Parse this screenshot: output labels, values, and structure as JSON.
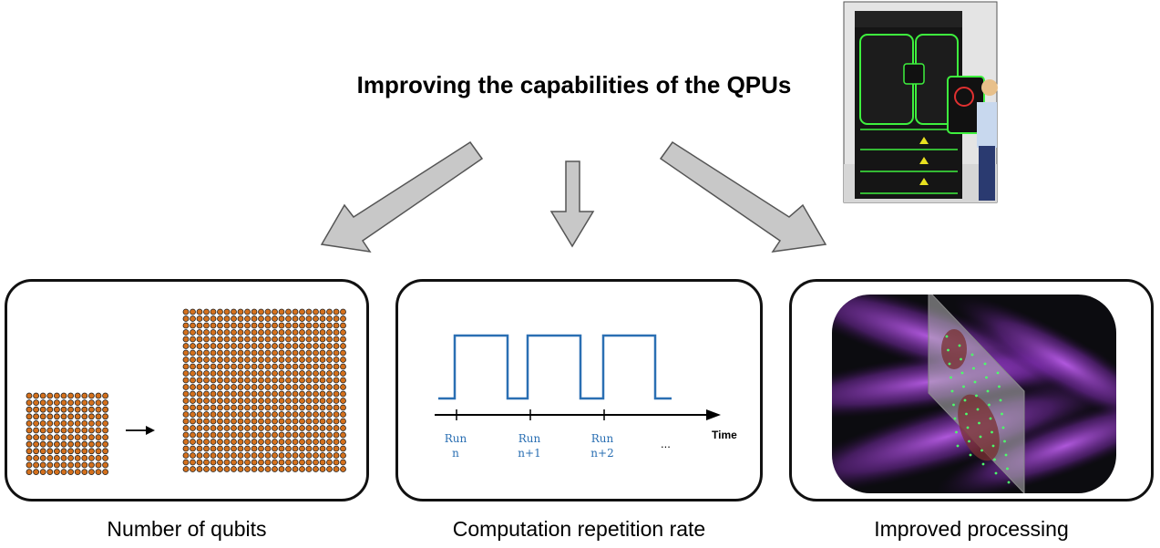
{
  "title": "Improving the capabilities of the QPUs",
  "panels": [
    {
      "caption": "Number of qubits"
    },
    {
      "caption": "Computation repetition rate"
    },
    {
      "caption": "Improved processing"
    }
  ],
  "timing": {
    "axis_label": "Time",
    "runs": [
      {
        "line1": "Run",
        "line2": "n"
      },
      {
        "line1": "Run",
        "line2": "n+1"
      },
      {
        "line1": "Run",
        "line2": "n+2"
      }
    ],
    "ellipsis": "..."
  },
  "qubit_grids": {
    "small": {
      "rows": 12,
      "cols": 12
    },
    "large": {
      "rows": 24,
      "cols": 24
    }
  },
  "colors": {
    "qubit_fill": "#d4701c",
    "arrow_fill": "#c8c8c8",
    "signal_blue": "#2a6fb3",
    "laser_purple": "#b040e0",
    "atom_green": "#4cff6a",
    "machine_green": "#3ef03e"
  }
}
